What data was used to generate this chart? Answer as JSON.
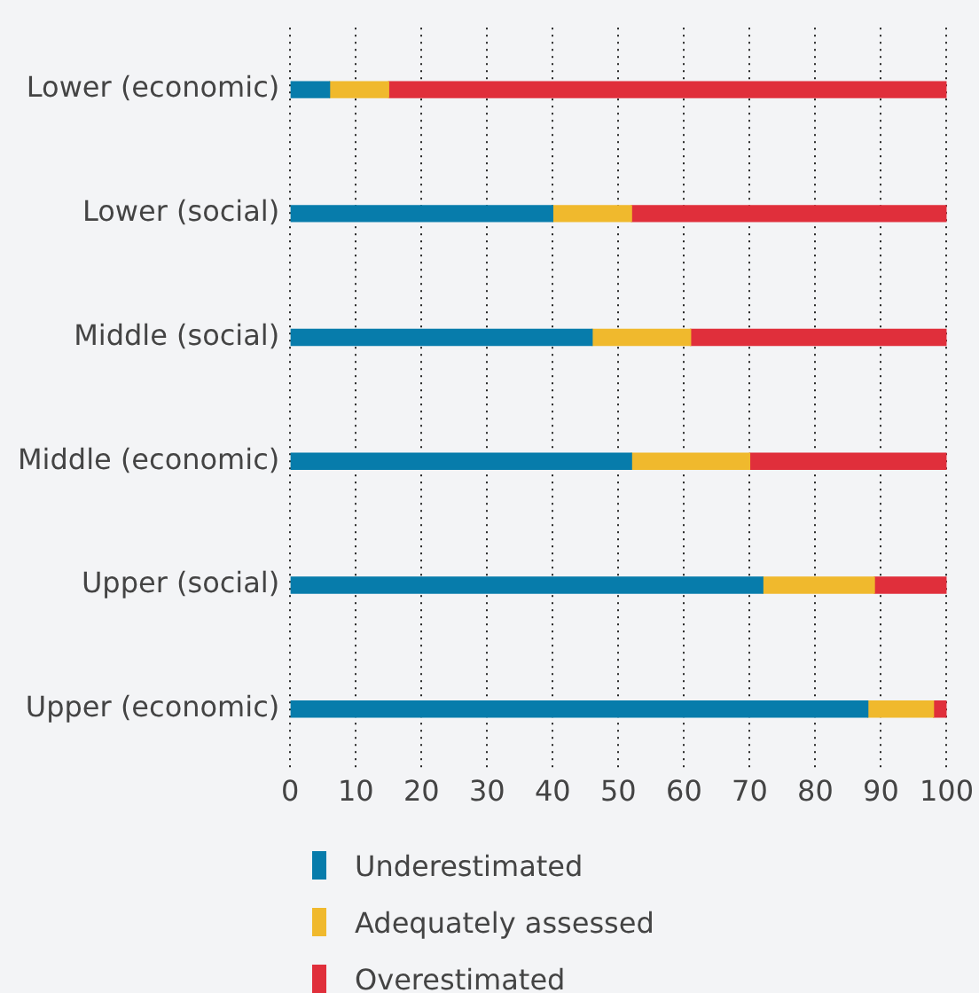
{
  "chart_data": {
    "type": "bar",
    "orientation": "horizontal",
    "stacked": true,
    "categories": [
      "Lower (economic)",
      "Lower (social)",
      "Middle (social)",
      "Middle (economic)",
      "Upper (social)",
      "Upper (economic)"
    ],
    "series": [
      {
        "name": "Underestimated",
        "color": "#077cab",
        "values": [
          6,
          40,
          46,
          52,
          72,
          88
        ]
      },
      {
        "name": "Adequately assessed",
        "color": "#f0b92d",
        "values": [
          9,
          12,
          15,
          18,
          17,
          10
        ]
      },
      {
        "name": "Overestimated",
        "color": "#e02f3b",
        "values": [
          85,
          48,
          39,
          30,
          11,
          2
        ]
      }
    ],
    "xlim": [
      0,
      100
    ],
    "xticks": [
      0,
      10,
      20,
      30,
      40,
      50,
      60,
      70,
      80,
      90,
      100
    ],
    "grid": "x",
    "legend": "bottom"
  }
}
